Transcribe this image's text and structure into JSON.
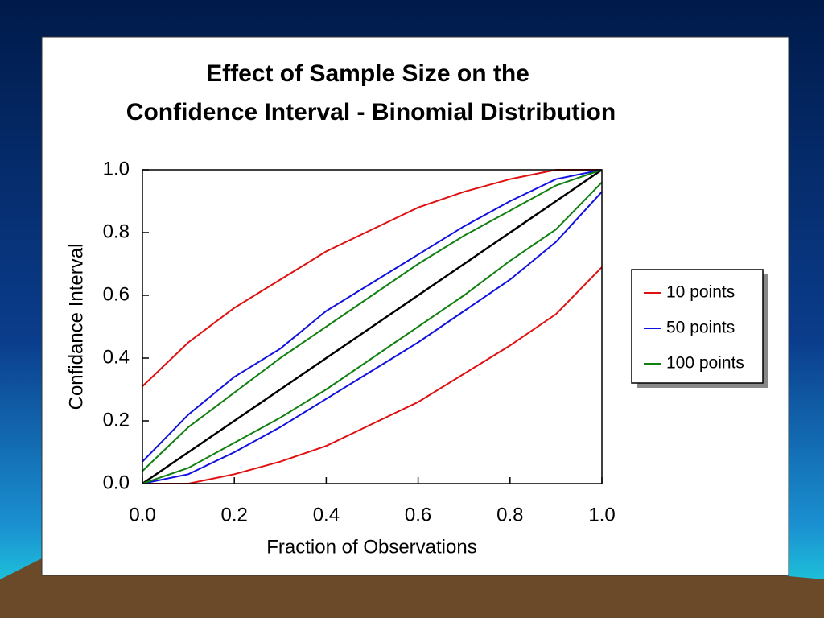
{
  "chart_data": {
    "type": "line",
    "title": [
      "Effect of Sample Size on the",
      "Confidence Interval - Binomial Distribution"
    ],
    "x_label": "Fraction of Observations",
    "y_label": "Confidance Interval",
    "x": [
      0,
      0.1,
      0.2,
      0.3,
      0.4,
      0.5,
      0.6,
      0.7,
      0.8,
      0.9,
      1
    ],
    "series": [
      {
        "name": "10 points",
        "color": "#e01010",
        "upper": [
          0.31,
          0.45,
          0.56,
          0.65,
          0.74,
          0.81,
          0.88,
          0.93,
          0.97,
          1.0,
          1.0
        ],
        "lower": [
          0,
          0,
          0.03,
          0.07,
          0.12,
          0.19,
          0.26,
          0.35,
          0.44,
          0.54,
          0.69
        ]
      },
      {
        "name": "50 points",
        "color": "#1010e0",
        "upper": [
          0.07,
          0.22,
          0.34,
          0.43,
          0.55,
          0.64,
          0.73,
          0.82,
          0.9,
          0.97,
          1.0
        ],
        "lower": [
          0,
          0.03,
          0.1,
          0.18,
          0.27,
          0.36,
          0.45,
          0.55,
          0.65,
          0.77,
          0.93
        ]
      },
      {
        "name": "100 points",
        "color": "#108010",
        "upper": [
          0.04,
          0.18,
          0.29,
          0.4,
          0.5,
          0.6,
          0.7,
          0.79,
          0.87,
          0.95,
          1.0
        ],
        "lower": [
          0,
          0.05,
          0.13,
          0.21,
          0.3,
          0.4,
          0.5,
          0.6,
          0.71,
          0.81,
          0.96
        ]
      }
    ],
    "diagonal": {
      "color": "#000000",
      "values": [
        0,
        0.1,
        0.2,
        0.3,
        0.4,
        0.5,
        0.6,
        0.7,
        0.8,
        0.9,
        1
      ]
    },
    "xlim": [
      0,
      1
    ],
    "ylim": [
      0,
      1
    ],
    "xticks": [
      {
        "value": 0,
        "label": "0.0"
      },
      0.2,
      0.4,
      0.6,
      0.8,
      {
        "value": 1,
        "label": "1.0"
      }
    ],
    "yticks": [
      {
        "value": 0,
        "label": "0.0"
      },
      0.2,
      0.4,
      0.6,
      0.8,
      {
        "value": 1,
        "label": "1.0"
      }
    ],
    "grid": false
  }
}
